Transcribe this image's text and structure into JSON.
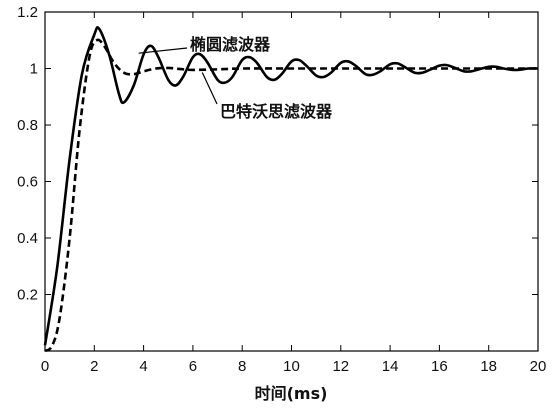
{
  "chart_data": {
    "type": "line",
    "title": "",
    "xlabel": "时间(ms)",
    "ylabel": "",
    "xlim": [
      0,
      20
    ],
    "ylim": [
      0,
      1.2
    ],
    "xticks": [
      0,
      2,
      4,
      6,
      8,
      10,
      12,
      14,
      16,
      18,
      20
    ],
    "yticks": [
      0.2,
      0.4,
      0.6,
      0.8,
      1,
      1.2
    ],
    "xtick_labels": [
      "0",
      "2",
      "4",
      "6",
      "8",
      "10",
      "12",
      "14",
      "16",
      "18",
      "20"
    ],
    "ytick_labels": [
      "0.2",
      "0.4",
      "0.6",
      "0.8",
      "1",
      "1.2"
    ],
    "grid": false,
    "series": [
      {
        "name": "椭圆滤波器",
        "style": "solid",
        "color": "#000000",
        "x": [
          0,
          0.5,
          1,
          1.5,
          2,
          2.2,
          2.6,
          3,
          3.2,
          3.6,
          4,
          4.3,
          4.6,
          5,
          5.3,
          5.6,
          6,
          6.3,
          6.6,
          7,
          7.3,
          7.6,
          8,
          8.3,
          8.6,
          9,
          9.3,
          9.6,
          10,
          10.3,
          10.6,
          11,
          11.3,
          11.6,
          12,
          12.3,
          12.6,
          13,
          13.3,
          13.6,
          14,
          14.3,
          14.6,
          15,
          15.3,
          15.6,
          16,
          16.3,
          16.6,
          17,
          17.3,
          17.6,
          18,
          18.3,
          18.6,
          19,
          19.3,
          19.6,
          20
        ],
        "y": [
          0.02,
          0.3,
          0.68,
          0.98,
          1.12,
          1.14,
          1.05,
          0.91,
          0.88,
          0.94,
          1.05,
          1.08,
          1.04,
          0.96,
          0.94,
          0.97,
          1.04,
          1.05,
          1.02,
          0.96,
          0.95,
          0.97,
          1.03,
          1.04,
          1.02,
          0.97,
          0.96,
          0.98,
          1.025,
          1.03,
          1.01,
          0.975,
          0.97,
          0.985,
          1.02,
          1.025,
          1.01,
          0.98,
          0.978,
          0.99,
          1.015,
          1.018,
          1.005,
          0.985,
          0.985,
          0.995,
          1.01,
          1.012,
          1.003,
          0.99,
          0.99,
          0.997,
          1.006,
          1.006,
          1.0,
          0.995,
          0.996,
          1.0,
          1.0
        ]
      },
      {
        "name": "巴特沃思滤波器",
        "style": "dashed",
        "color": "#000000",
        "x": [
          0,
          0.3,
          0.6,
          1,
          1.4,
          1.8,
          2.1,
          2.4,
          2.8,
          3.2,
          3.6,
          4,
          4.5,
          5,
          5.5,
          6,
          7,
          8,
          10,
          12,
          14,
          16,
          18,
          20
        ],
        "y": [
          0.0,
          0.02,
          0.12,
          0.4,
          0.78,
          1.04,
          1.1,
          1.08,
          1.02,
          0.985,
          0.98,
          0.99,
          1.0,
          1.002,
          0.998,
          0.995,
          0.997,
          1.0,
          1.0,
          1.0,
          1.0,
          1.0,
          1.0,
          1.0
        ]
      }
    ],
    "annotations": [
      {
        "text": "椭圆滤波器",
        "points_to": {
          "x": 3.8,
          "y": 1.04
        }
      },
      {
        "text": "巴特沃思滤波器",
        "points_to": {
          "x": 6.3,
          "y": 1.0
        }
      }
    ]
  }
}
